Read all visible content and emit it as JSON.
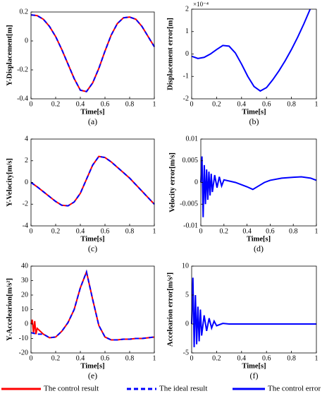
{
  "chart_data": [
    {
      "type": "line",
      "y_label": "Y-Displacement[m]",
      "x_label": "Time[s]",
      "caption": "(a)",
      "x": [
        0,
        0.05,
        0.1,
        0.15,
        0.2,
        0.25,
        0.3,
        0.35,
        0.4,
        0.45,
        0.5,
        0.55,
        0.6,
        0.65,
        0.7,
        0.75,
        0.8,
        0.85,
        0.9,
        0.95,
        1
      ],
      "series": [
        {
          "name": "The control result",
          "color": "#ff0000",
          "dashed": false,
          "values": [
            0.18,
            0.175,
            0.15,
            0.1,
            0.03,
            -0.06,
            -0.16,
            -0.26,
            -0.34,
            -0.35,
            -0.29,
            -0.19,
            -0.07,
            0.04,
            0.12,
            0.16,
            0.165,
            0.15,
            0.1,
            0.03,
            -0.04
          ]
        },
        {
          "name": "The ideal result",
          "color": "#0000ff",
          "dashed": true,
          "values": [
            0.18,
            0.175,
            0.15,
            0.1,
            0.03,
            -0.06,
            -0.16,
            -0.26,
            -0.34,
            -0.35,
            -0.29,
            -0.19,
            -0.07,
            0.04,
            0.12,
            0.16,
            0.165,
            0.15,
            0.1,
            0.03,
            -0.04
          ]
        }
      ],
      "xlim": [
        0,
        1
      ],
      "xticks": [
        0,
        0.2,
        0.4,
        0.6,
        0.8,
        1
      ],
      "ylim": [
        -0.4,
        0.2
      ],
      "yticks": [
        -0.4,
        -0.2,
        0,
        0.2
      ]
    },
    {
      "type": "line",
      "y_label": "Displacement error[m]",
      "x_label": "Time[s]",
      "caption": "(b)",
      "y_scale_label": "×10⁻⁴",
      "x": [
        0,
        0.05,
        0.1,
        0.15,
        0.2,
        0.25,
        0.3,
        0.35,
        0.4,
        0.45,
        0.5,
        0.55,
        0.6,
        0.65,
        0.7,
        0.75,
        0.8,
        0.85,
        0.9,
        0.95
      ],
      "series": [
        {
          "name": "The control error",
          "color": "#0000ff",
          "dashed": false,
          "values": [
            -0.1,
            -0.2,
            -0.15,
            0,
            0.2,
            0.38,
            0.35,
            0.05,
            -0.45,
            -1.0,
            -1.45,
            -1.65,
            -1.5,
            -1.15,
            -0.75,
            -0.3,
            0.2,
            0.75,
            1.35,
            2.0
          ]
        }
      ],
      "xlim": [
        0,
        1
      ],
      "xticks": [
        0,
        0.2,
        0.4,
        0.6,
        0.8,
        1
      ],
      "ylim": [
        -2,
        2
      ],
      "yticks": [
        -2,
        -1,
        0,
        1,
        2
      ]
    },
    {
      "type": "line",
      "y_label": "Y-Velocity[m/s]",
      "x_label": "Time[s]",
      "caption": "(c)",
      "x": [
        0,
        0.05,
        0.1,
        0.15,
        0.2,
        0.25,
        0.3,
        0.35,
        0.4,
        0.45,
        0.5,
        0.55,
        0.6,
        0.65,
        0.7,
        0.75,
        0.8,
        0.85,
        0.9,
        0.95,
        1
      ],
      "series": [
        {
          "color": "#ff0000",
          "dashed": false,
          "values": [
            0,
            -0.4,
            -0.85,
            -1.3,
            -1.75,
            -2.1,
            -2.15,
            -1.8,
            -1.0,
            0.3,
            1.6,
            2.4,
            2.3,
            1.9,
            1.4,
            0.9,
            0.4,
            -0.2,
            -0.8,
            -1.4,
            -2.0
          ]
        },
        {
          "color": "#0000ff",
          "dashed": true,
          "values": [
            0,
            -0.4,
            -0.85,
            -1.3,
            -1.75,
            -2.1,
            -2.15,
            -1.8,
            -1.0,
            0.3,
            1.6,
            2.4,
            2.3,
            1.9,
            1.4,
            0.9,
            0.4,
            -0.2,
            -0.8,
            -1.4,
            -2.0
          ]
        }
      ],
      "xlim": [
        0,
        1
      ],
      "xticks": [
        0,
        0.2,
        0.4,
        0.6,
        0.8,
        1
      ],
      "ylim": [
        -4,
        4
      ],
      "yticks": [
        -4,
        -2,
        0,
        2,
        4
      ]
    },
    {
      "type": "line",
      "y_label": "Velocity error[m/s]",
      "x_label": "Time[s]",
      "caption": "(d)",
      "x": [
        0,
        0.01,
        0.02,
        0.03,
        0.04,
        0.05,
        0.06,
        0.07,
        0.08,
        0.09,
        0.1,
        0.12,
        0.14,
        0.16,
        0.18,
        0.2,
        0.25,
        0.3,
        0.35,
        0.4,
        0.45,
        0.5,
        0.55,
        0.6,
        0.7,
        0.8,
        0.87,
        0.95,
        1
      ],
      "series": [
        {
          "color": "#0000ff",
          "dashed": false,
          "values": [
            0,
            0.006,
            -0.008,
            0.004,
            -0.005,
            0.003,
            -0.004,
            0.0025,
            -0.003,
            0.002,
            -0.0022,
            0.0017,
            -0.0012,
            0.0013,
            -0.0008,
            0.0006,
            0.0003,
            0,
            -0.0005,
            -0.001,
            -0.0016,
            -0.0008,
            0,
            0.0005,
            0.001,
            0.0012,
            0.0013,
            0.001,
            0.0005
          ]
        }
      ],
      "xlim": [
        0,
        1
      ],
      "xticks": [
        0,
        0.2,
        0.4,
        0.6,
        0.8,
        1
      ],
      "ylim": [
        -0.01,
        0.01
      ],
      "yticks": [
        -0.01,
        -0.005,
        0,
        0.005,
        0.01
      ]
    },
    {
      "type": "line",
      "y_label": "Y-Accelearion[m/s²]",
      "x_label": "Time[s]",
      "caption": "(e)",
      "x": [
        0,
        0.01,
        0.02,
        0.03,
        0.04,
        0.05,
        0.1,
        0.15,
        0.2,
        0.25,
        0.3,
        0.35,
        0.4,
        0.45,
        0.5,
        0.55,
        0.6,
        0.65,
        0.7,
        0.75,
        0.8,
        0.85,
        0.9,
        0.95,
        1
      ],
      "series": [
        {
          "color": "#ff0000",
          "dashed": false,
          "values": [
            0,
            3,
            -6,
            2,
            -7,
            -3,
            -7,
            -9.5,
            -9,
            -5,
            1,
            10,
            25,
            36,
            17,
            -1,
            -9,
            -11,
            -11,
            -10.5,
            -10.5,
            -10,
            -10,
            -9.5,
            -9
          ]
        },
        {
          "color": "#0000ff",
          "dashed": true,
          "values": [
            -6,
            -6.2,
            -6.4,
            -6.6,
            -6.8,
            -7,
            -7,
            -9.5,
            -9,
            -5,
            1,
            10,
            25,
            36,
            17,
            -1,
            -9,
            -11,
            -11,
            -10.5,
            -10.5,
            -10,
            -10,
            -9.5,
            -9
          ]
        }
      ],
      "xlim": [
        0,
        1
      ],
      "xticks": [
        0,
        0.2,
        0.4,
        0.6,
        0.8,
        1
      ],
      "ylim": [
        -20,
        40
      ],
      "yticks": [
        -20,
        -10,
        0,
        10,
        20,
        30,
        40
      ]
    },
    {
      "type": "line",
      "y_label": "Accelearion error[m/s²]",
      "x_label": "Time[s]",
      "caption": "(f)",
      "x": [
        0,
        0.01,
        0.02,
        0.03,
        0.04,
        0.05,
        0.06,
        0.07,
        0.08,
        0.1,
        0.12,
        0.14,
        0.16,
        0.18,
        0.2,
        0.25,
        0.3,
        0.5,
        1
      ],
      "series": [
        {
          "color": "#0000ff",
          "dashed": false,
          "values": [
            0,
            8,
            -4,
            5,
            -3.5,
            3,
            -3,
            2.5,
            -2,
            1.5,
            -1.2,
            1,
            -0.7,
            0.5,
            -0.3,
            0.1,
            0,
            0,
            0
          ]
        }
      ],
      "xlim": [
        0,
        1
      ],
      "xticks": [
        0,
        0.2,
        0.4,
        0.6,
        0.8,
        1
      ],
      "ylim": [
        -5,
        10
      ],
      "yticks": [
        -5,
        0,
        5,
        10
      ]
    }
  ]
}
